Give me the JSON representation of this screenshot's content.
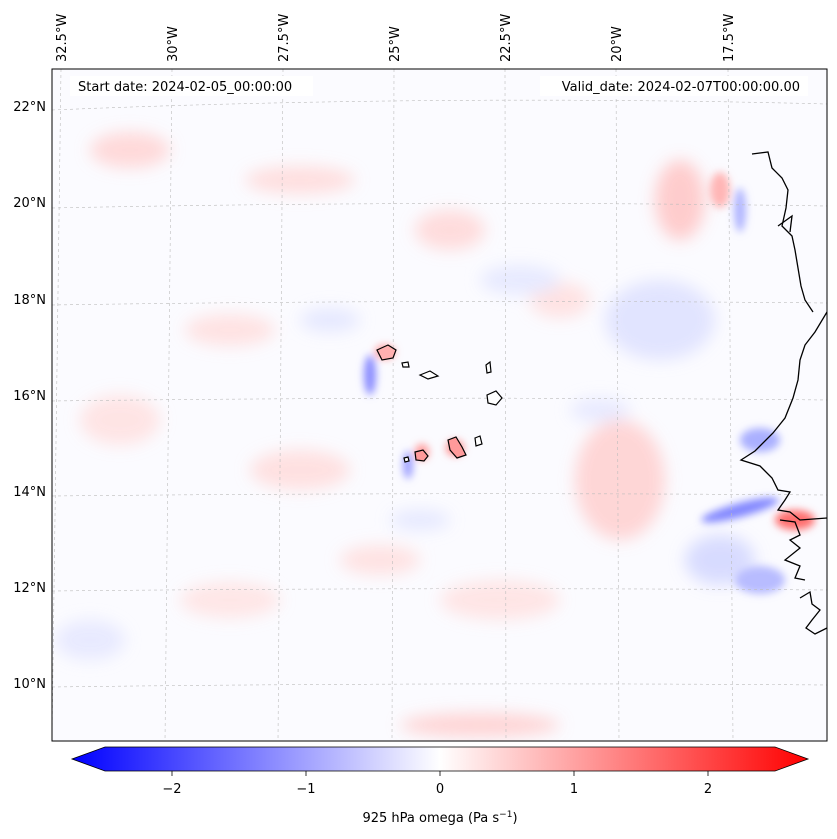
{
  "header": {
    "start_date": "Start date: 2024-02-05_00:00:00",
    "valid_date": "Valid_date: 2024-02-07T00:00:00.00"
  },
  "longitude_labels": [
    "32.5°W",
    "30°W",
    "27.5°W",
    "25°W",
    "22.5°W",
    "20°W",
    "17.5°W"
  ],
  "latitude_labels": [
    "22°N",
    "20°N",
    "18°N",
    "16°N",
    "14°N",
    "12°N",
    "10°N"
  ],
  "colorbar": {
    "ticks": [
      "−2",
      "−1",
      "0",
      "1",
      "2"
    ],
    "tick_values": [
      -2,
      -1,
      0,
      1,
      2
    ],
    "range": [
      -2.5,
      2.5
    ],
    "label_main": "925 hPa omega (Pa s",
    "label_sup": "−1",
    "label_end": ")",
    "colors": {
      "negative": "#0000ff",
      "neutral": "#ffffff",
      "positive": "#ff0000"
    }
  },
  "map": {
    "coastline_color": "#000000",
    "gridline_color": "#b0b0b0",
    "islands": [
      "Santo Antão",
      "São Vicente",
      "São Nicolau",
      "Sal",
      "Boa Vista",
      "Maio",
      "Santiago",
      "Fogo",
      "Brava"
    ],
    "features": [
      "west-african-coastline",
      "cape-verde-islands",
      "omega-anomaly-field"
    ]
  }
}
